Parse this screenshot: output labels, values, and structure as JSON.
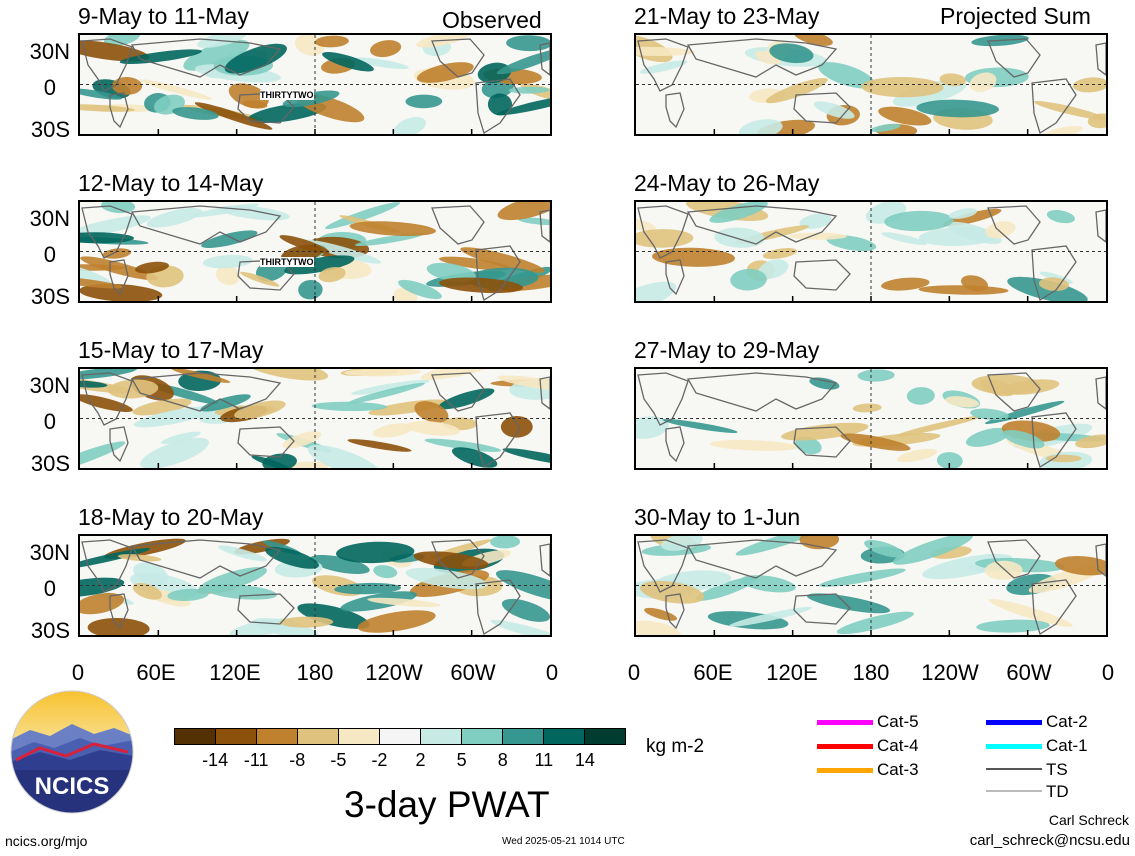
{
  "header": {
    "observed_label": "Observed",
    "projected_label": "Projected Sum"
  },
  "panels": {
    "left": [
      {
        "title": "9-May to 11-May",
        "storm": "THIRTYTWO"
      },
      {
        "title": "12-May to 14-May",
        "storm": "THIRTYTWO"
      },
      {
        "title": "15-May to 17-May",
        "storm": ""
      },
      {
        "title": "18-May to 20-May",
        "storm": ""
      }
    ],
    "right": [
      {
        "title": "21-May to 23-May"
      },
      {
        "title": "24-May to 26-May"
      },
      {
        "title": "27-May to 29-May"
      },
      {
        "title": "30-May to 1-Jun"
      }
    ]
  },
  "axes": {
    "lat_labels": [
      "30N",
      "0",
      "30S"
    ],
    "lon_labels": [
      "0",
      "60E",
      "120E",
      "180",
      "120W",
      "60W",
      "0"
    ]
  },
  "colorbar": {
    "unit": "kg m-2",
    "tick_labels": [
      "-14",
      "-11",
      "-8",
      "-5",
      "-2",
      "2",
      "5",
      "8",
      "11",
      "14"
    ],
    "colors": [
      "#543005",
      "#8c510a",
      "#bf812d",
      "#dfc27d",
      "#f6e8c3",
      "#f5f5f5",
      "#c7eae5",
      "#80cdc1",
      "#35978f",
      "#01665e",
      "#003c30"
    ]
  },
  "legend": [
    {
      "label": "Cat-5",
      "color": "#ff00ff"
    },
    {
      "label": "Cat-4",
      "color": "#ff0000"
    },
    {
      "label": "Cat-3",
      "color": "#ffa500"
    },
    {
      "label": "Cat-2",
      "color": "#0000ff"
    },
    {
      "label": "Cat-1",
      "color": "#00ffff"
    },
    {
      "label": "TS",
      "color": "#555555"
    },
    {
      "label": "TD",
      "color": "#bbbbbb"
    }
  ],
  "footer": {
    "main_title": "3-day PWAT",
    "logo_text": "NCICS",
    "url": "ncics.org/mjo",
    "timestamp": "Wed 2025-05-21 1014 UTC",
    "author": "Carl Schreck",
    "email": "carl_schreck@ncsu.edu"
  }
}
